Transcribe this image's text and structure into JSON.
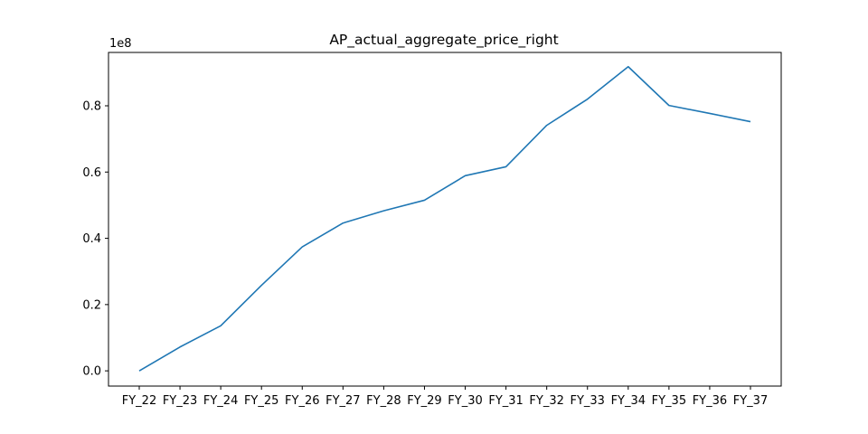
{
  "chart_data": {
    "type": "line",
    "title": "AP_actual_aggregate_price_right",
    "xlabel": "",
    "ylabel": "",
    "y_offset_label": "1e8",
    "y_scale_factor": 100000000,
    "categories": [
      "FY_22",
      "FY_23",
      "FY_24",
      "FY_25",
      "FY_26",
      "FY_27",
      "FY_28",
      "FY_29",
      "FY_30",
      "FY_31",
      "FY_32",
      "FY_33",
      "FY_34",
      "FY_35",
      "FY_36",
      "FY_37"
    ],
    "series": [
      {
        "values": [
          0,
          7200000,
          13600000,
          25800000,
          37400000,
          44600000,
          48300000,
          51500000,
          58900000,
          61600000,
          74100000,
          82000000,
          91800000,
          80100000,
          77700000,
          75200000
        ],
        "color": "#1f77b4"
      }
    ],
    "ylim": [
      -4600000,
      96100000
    ],
    "yticks": [
      0,
      20000000,
      40000000,
      60000000,
      80000000
    ],
    "ytick_labels": [
      "0.0",
      "0.2",
      "0.4",
      "0.6",
      "0.8"
    ],
    "grid": false,
    "legend": "none"
  }
}
